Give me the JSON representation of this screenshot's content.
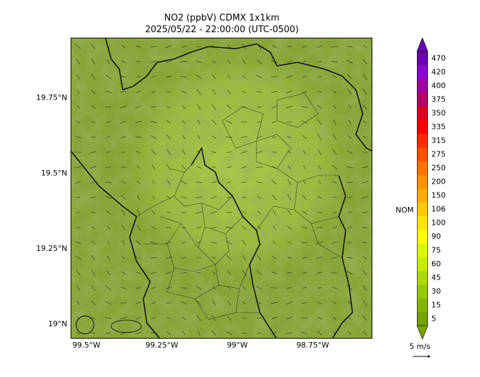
{
  "title": {
    "line1": "NO2 (ppbV) CDMX 1x1km",
    "line2": "2025/05/22 - 22:00:00 (UTC-0500)"
  },
  "axes": {
    "y_ticks": [
      "19.75°N",
      "19.5°N",
      "19.25°N",
      "19°N"
    ],
    "x_ticks": [
      "99.5°W",
      "99.25°W",
      "99°W",
      "98.75°W"
    ]
  },
  "colorbar": {
    "labels": [
      "5",
      "15",
      "30",
      "45",
      "60",
      "75",
      "90",
      "100",
      "106",
      "150",
      "200",
      "250",
      "275",
      "315",
      "335",
      "350",
      "375",
      "400",
      "420",
      "470"
    ],
    "colors": [
      "#77a100",
      "#86b300",
      "#97c700",
      "#abd900",
      "#c4ec00",
      "#dcf500",
      "#ffff00",
      "#ffe400",
      "#ffc800",
      "#ffac00",
      "#ff9000",
      "#ff7400",
      "#ff5000",
      "#ff2c00",
      "#ff0000",
      "#dc0020",
      "#b40060",
      "#a000a0",
      "#8c00d8",
      "#6a00b0"
    ],
    "nom_label": "NOM"
  },
  "wind_key": {
    "label": "5 m/s"
  },
  "map": {
    "base_color": "#8aa43a",
    "dark_color": "#55701a",
    "light_color": "#a8c44a"
  }
}
